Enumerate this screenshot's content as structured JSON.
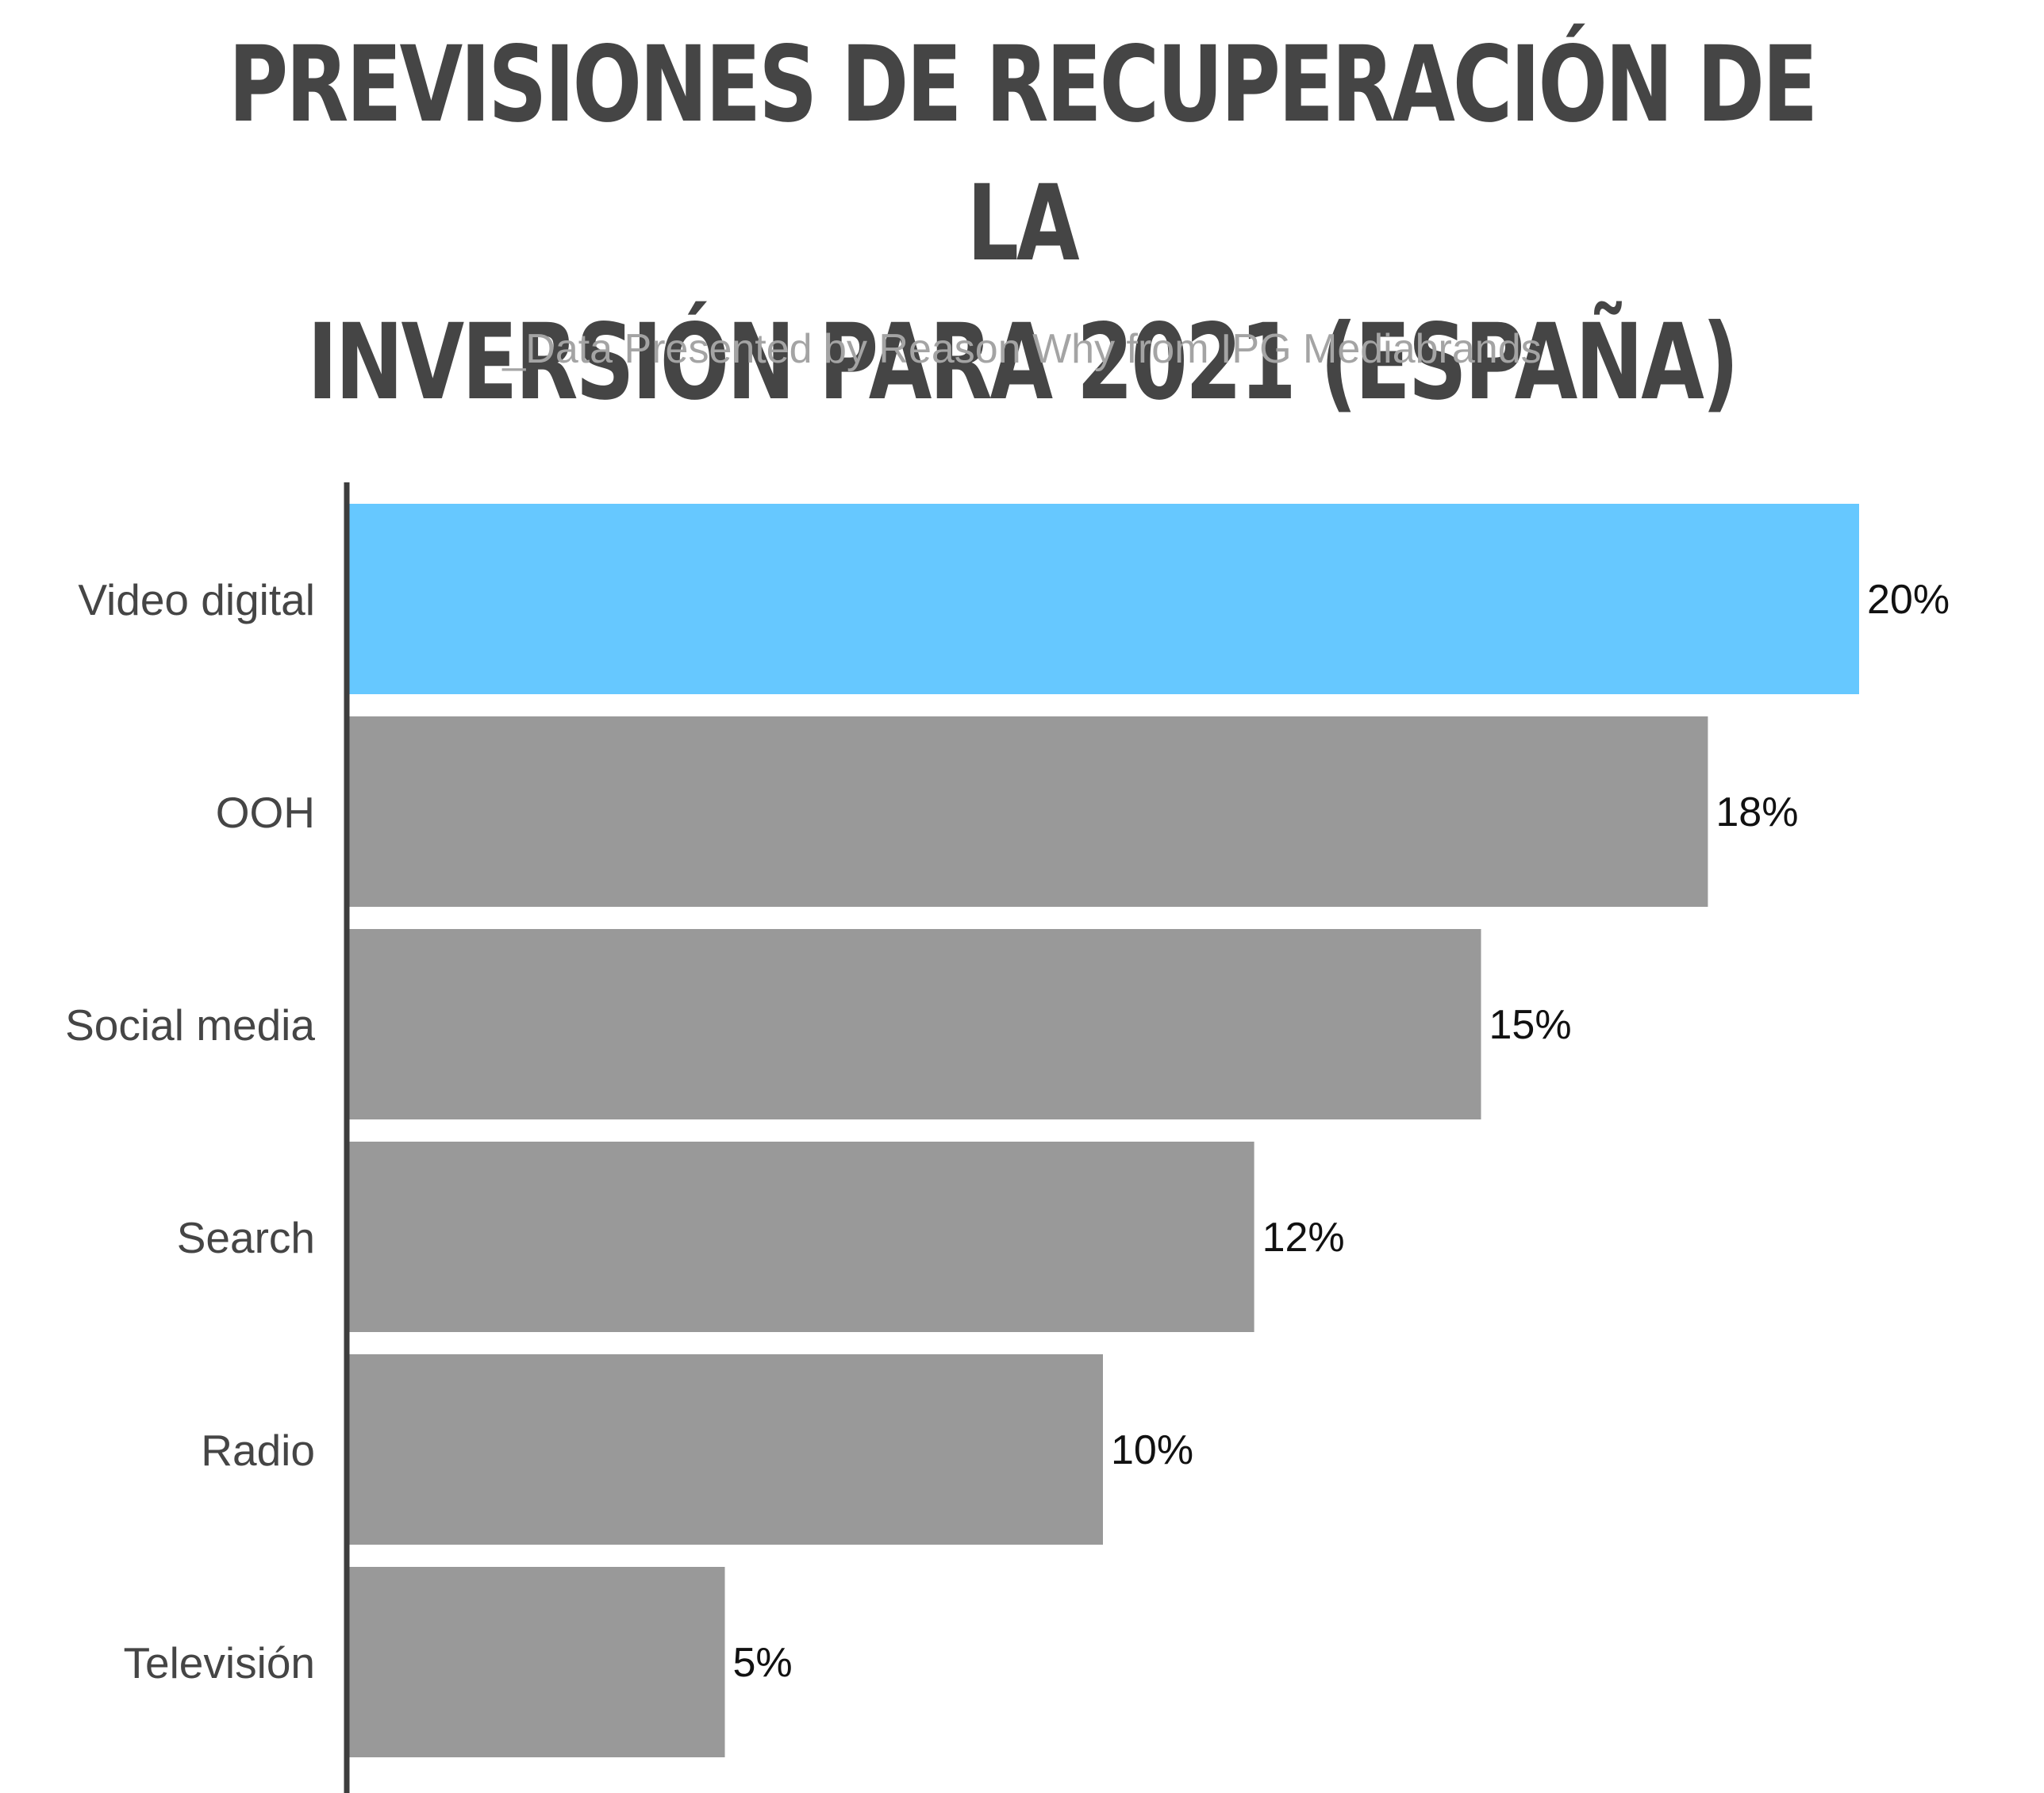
{
  "title_lines": [
    "PREVISIONES DE RECUPERACIÓN DE LA",
    "INVERSIÓN PARA 2021 (ESPAÑA)"
  ],
  "subtitle": "_Data Presented by Reason Why from IPG Mediabrands",
  "colors": {
    "highlight": "#66c8ff",
    "bar": "#999999",
    "axis": "#3d3d3d",
    "title": "#454545",
    "subtitle": "#a4a4a4"
  },
  "chart_data": {
    "type": "bar",
    "orientation": "horizontal",
    "categories": [
      "Video digital",
      "OOH",
      "Social media",
      "Search",
      "Radio",
      "Televisión"
    ],
    "values": [
      20,
      18,
      15,
      12,
      10,
      5
    ],
    "value_labels": [
      "20%",
      "18%",
      "15%",
      "12%",
      "10%",
      "5%"
    ],
    "highlighted": [
      "Video digital"
    ],
    "xlim": [
      0,
      20
    ],
    "grid": false,
    "legend": "none"
  }
}
